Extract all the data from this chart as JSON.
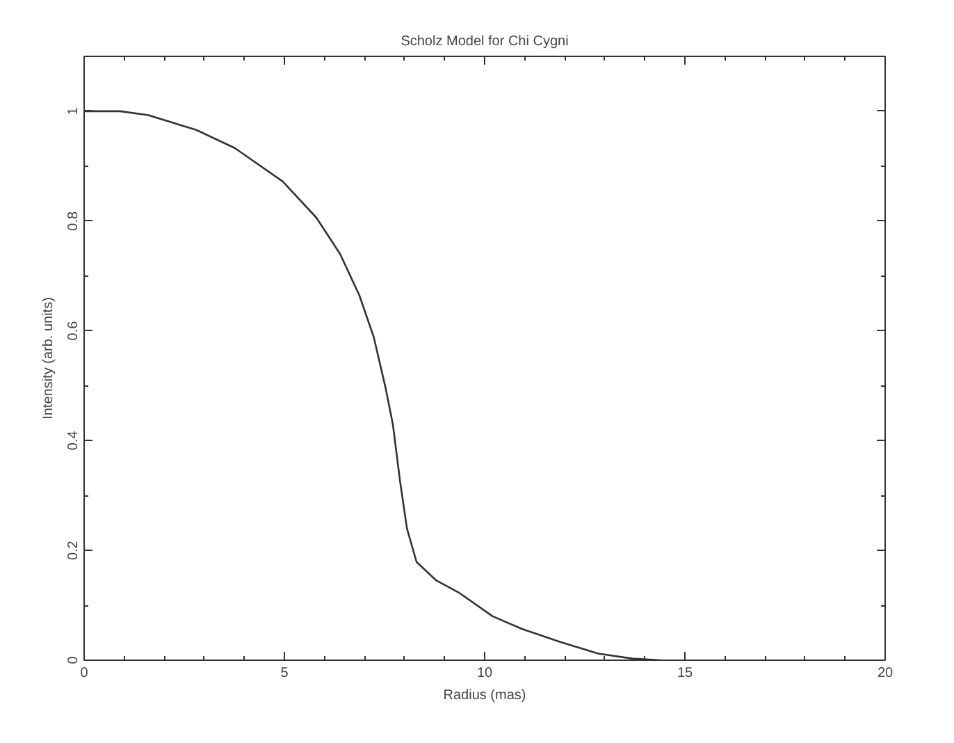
{
  "chart_data": {
    "type": "line",
    "title": "Scholz Model for Chi Cygni",
    "xlabel": "Radius (mas)",
    "ylabel": "Intensity (arb. units)",
    "x": [
      0,
      0.9,
      1.6,
      2.8,
      3.76,
      4.96,
      5.8,
      6.39,
      6.87,
      7.23,
      7.53,
      7.71,
      7.89,
      8.06,
      8.3,
      8.78,
      9.38,
      10.2,
      10.93,
      11.9,
      12.84,
      13.68,
      14.4
    ],
    "series": [
      {
        "color": "#333333",
        "values": [
          1,
          1,
          0.993,
          0.966,
          0.933,
          0.872,
          0.806,
          0.74,
          0.665,
          0.589,
          0.495,
          0.429,
          0.325,
          0.24,
          0.179,
          0.146,
          0.122,
          0.08,
          0.057,
          0.033,
          0.012,
          0.003,
          0
        ]
      }
    ],
    "xlim": [
      0,
      20
    ],
    "ylim": [
      0,
      1.1
    ],
    "xticks": [
      0,
      5,
      10,
      15,
      20
    ],
    "yticks": [
      0,
      0.2,
      0.4,
      0.6,
      0.8,
      1
    ],
    "grid": false,
    "marker": "none",
    "line_style": "solid"
  }
}
